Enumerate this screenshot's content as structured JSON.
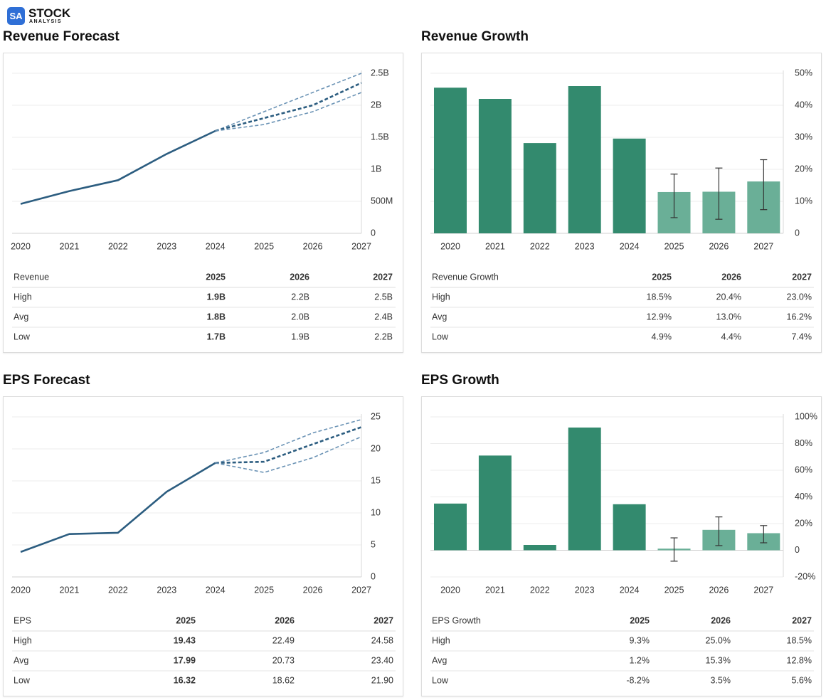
{
  "logo": {
    "badge": "SA",
    "name": "STOCK",
    "tagline": "ANALYSIS"
  },
  "chart_data": [
    {
      "type": "line",
      "title": "Revenue Forecast",
      "categories": [
        "2020",
        "2021",
        "2022",
        "2023",
        "2024",
        "2025",
        "2026",
        "2027"
      ],
      "series": [
        {
          "color": "#2c5d80",
          "style": "solid",
          "values": [
            460000000,
            660000000,
            830000000,
            1240000000,
            1600000000,
            null,
            null,
            null
          ]
        },
        {
          "color": "#6b93b5",
          "style": "dashed",
          "values": [
            null,
            null,
            null,
            null,
            1600000000,
            1900000000,
            2200000000,
            2500000000
          ]
        },
        {
          "color": "#2c5d80",
          "style": "dashed",
          "values": [
            null,
            null,
            null,
            null,
            1600000000,
            1800000000,
            2000000000,
            2350000000
          ]
        },
        {
          "color": "#6b93b5",
          "style": "dashed",
          "values": [
            null,
            null,
            null,
            null,
            1600000000,
            1700000000,
            1900000000,
            2200000000
          ]
        }
      ],
      "ylim": [
        0,
        2500000000
      ],
      "yticks": [
        0,
        {
          "value": 500000000,
          "label": "500M"
        },
        {
          "value": 1000000000,
          "label": "1B"
        },
        {
          "value": 1500000000,
          "label": "1.5B"
        },
        {
          "value": 2000000000,
          "label": "2B"
        },
        {
          "value": 2500000000,
          "label": "2.5B"
        }
      ],
      "grid": true,
      "table": {
        "header": [
          "Revenue",
          "2025",
          "2026",
          "2027"
        ],
        "rows": [
          [
            "High",
            "1.9B",
            "2.2B",
            "2.5B"
          ],
          [
            "Avg",
            "1.8B",
            "2.0B",
            "2.4B"
          ],
          [
            "Low",
            "1.7B",
            "1.9B",
            "2.2B"
          ]
        ]
      }
    },
    {
      "type": "bar",
      "title": "Revenue Growth",
      "categories": [
        "2020",
        "2021",
        "2022",
        "2023",
        "2024",
        "2025",
        "2026",
        "2027"
      ],
      "values": [
        45.5,
        42,
        28.2,
        46,
        29.6,
        12.9,
        13.0,
        16.2
      ],
      "high": [
        null,
        null,
        null,
        null,
        null,
        18.5,
        20.4,
        23.0
      ],
      "low": [
        null,
        null,
        null,
        null,
        null,
        4.9,
        4.4,
        7.4
      ],
      "bar_colors": [
        "#338a6e",
        "#338a6e",
        "#338a6e",
        "#338a6e",
        "#338a6e",
        "#6aaf97",
        "#6aaf97",
        "#6aaf97"
      ],
      "ylim": [
        0,
        50
      ],
      "yticks": [
        {
          "value": 0,
          "label": "0"
        },
        {
          "value": 10,
          "label": "10%"
        },
        {
          "value": 20,
          "label": "20%"
        },
        {
          "value": 30,
          "label": "30%"
        },
        {
          "value": 40,
          "label": "40%"
        },
        {
          "value": 50,
          "label": "50%"
        }
      ],
      "grid": true,
      "table": {
        "header": [
          "Revenue Growth",
          "2025",
          "2026",
          "2027"
        ],
        "rows": [
          [
            "High",
            "18.5%",
            "20.4%",
            "23.0%"
          ],
          [
            "Avg",
            "12.9%",
            "13.0%",
            "16.2%"
          ],
          [
            "Low",
            "4.9%",
            "4.4%",
            "7.4%"
          ]
        ]
      }
    },
    {
      "type": "line",
      "title": "EPS Forecast",
      "categories": [
        "2020",
        "2021",
        "2022",
        "2023",
        "2024",
        "2025",
        "2026",
        "2027"
      ],
      "series": [
        {
          "color": "#2c5d80",
          "style": "solid",
          "values": [
            3.9,
            6.7,
            6.9,
            13.3,
            17.8,
            null,
            null,
            null
          ]
        },
        {
          "color": "#6b93b5",
          "style": "dashed",
          "values": [
            null,
            null,
            null,
            null,
            17.8,
            19.43,
            22.49,
            24.58
          ]
        },
        {
          "color": "#2c5d80",
          "style": "dashed",
          "values": [
            null,
            null,
            null,
            null,
            17.8,
            17.99,
            20.73,
            23.4
          ]
        },
        {
          "color": "#6b93b5",
          "style": "dashed",
          "values": [
            null,
            null,
            null,
            null,
            17.8,
            16.32,
            18.62,
            21.9
          ]
        }
      ],
      "ylim": [
        0,
        25
      ],
      "yticks": [
        0,
        5,
        10,
        15,
        20,
        25
      ],
      "grid": true,
      "table": {
        "header": [
          "EPS",
          "2025",
          "2026",
          "2027"
        ],
        "rows": [
          [
            "High",
            "19.43",
            "22.49",
            "24.58"
          ],
          [
            "Avg",
            "17.99",
            "20.73",
            "23.40"
          ],
          [
            "Low",
            "16.32",
            "18.62",
            "21.90"
          ]
        ]
      }
    },
    {
      "type": "bar",
      "title": "EPS Growth",
      "categories": [
        "2020",
        "2021",
        "2022",
        "2023",
        "2024",
        "2025",
        "2026",
        "2027"
      ],
      "values": [
        35,
        71,
        4,
        92,
        34.5,
        1.2,
        15.3,
        12.8
      ],
      "high": [
        null,
        null,
        null,
        null,
        null,
        9.3,
        25.0,
        18.5
      ],
      "low": [
        null,
        null,
        null,
        null,
        null,
        -8.2,
        3.5,
        5.6
      ],
      "bar_colors": [
        "#338a6e",
        "#338a6e",
        "#338a6e",
        "#338a6e",
        "#338a6e",
        "#6aaf97",
        "#6aaf97",
        "#6aaf97"
      ],
      "ylim": [
        -20,
        100
      ],
      "yticks": [
        {
          "value": -20,
          "label": "-20%"
        },
        {
          "value": 0,
          "label": "0"
        },
        {
          "value": 20,
          "label": "20%"
        },
        {
          "value": 40,
          "label": "40%"
        },
        {
          "value": 60,
          "label": "60%"
        },
        {
          "value": 80,
          "label": "80%"
        },
        {
          "value": 100,
          "label": "100%"
        }
      ],
      "grid": true,
      "table": {
        "header": [
          "EPS Growth",
          "2025",
          "2026",
          "2027"
        ],
        "rows": [
          [
            "High",
            "9.3%",
            "25.0%",
            "18.5%"
          ],
          [
            "Avg",
            "1.2%",
            "15.3%",
            "12.8%"
          ],
          [
            "Low",
            "-8.2%",
            "3.5%",
            "5.6%"
          ]
        ]
      }
    }
  ]
}
